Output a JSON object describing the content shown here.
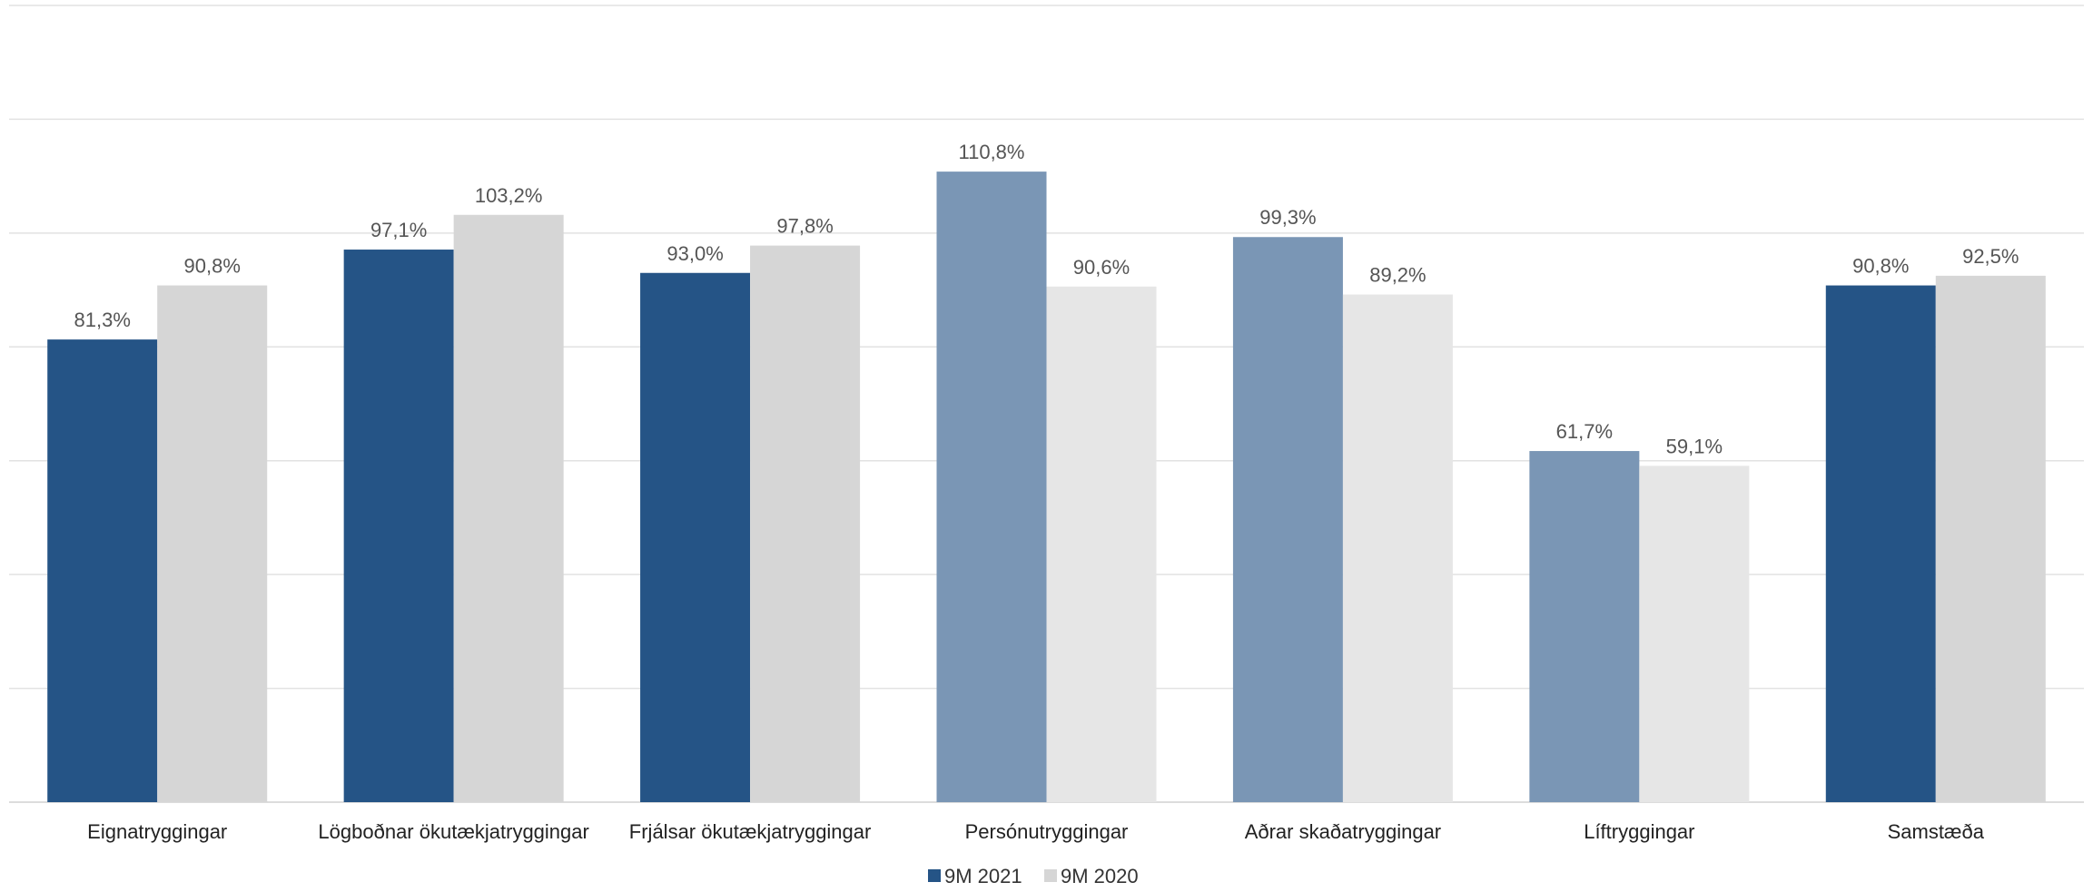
{
  "chart_data": {
    "type": "bar",
    "categories": [
      "Eignatryggingar",
      "Lögboðnar ökutækjatryggingar",
      "Frjálsar ökutækjatryggingar",
      "Persónutryggingar",
      "Aðrar skaðatryggingar",
      "Líftryggingar",
      "Samstæða"
    ],
    "series": [
      {
        "name": "9M 2021",
        "values": [
          81.3,
          97.1,
          93.0,
          110.8,
          99.3,
          61.7,
          90.8
        ],
        "labels": [
          "81,3%",
          "97,1%",
          "93,0%",
          "110,8%",
          "99,3%",
          "61,7%",
          "90,8%"
        ],
        "colors": [
          "#255486",
          "#255486",
          "#255486",
          "#7a96b5",
          "#7a96b5",
          "#7a96b5",
          "#255486"
        ]
      },
      {
        "name": "9M 2020",
        "values": [
          90.8,
          103.2,
          97.8,
          90.6,
          89.2,
          59.1,
          92.5
        ],
        "labels": [
          "90,8%",
          "103,2%",
          "97,8%",
          "90,6%",
          "89,2%",
          "59,1%",
          "92,5%"
        ],
        "colors": [
          "#d6d6d6",
          "#d6d6d6",
          "#d6d6d6",
          "#e6e6e6",
          "#e6e6e6",
          "#e6e6e6",
          "#d6d6d6"
        ]
      }
    ],
    "ylim": [
      0,
      140
    ],
    "gridlines": [
      0,
      20,
      40,
      60,
      80,
      100,
      120,
      140
    ],
    "grid": true,
    "legend_position": "bottom-center",
    "title": "",
    "xlabel": "",
    "ylabel": ""
  }
}
